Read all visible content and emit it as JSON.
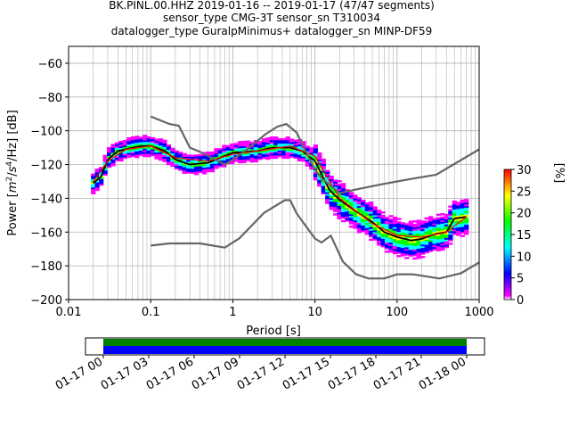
{
  "title_lines": [
    "BK.PINL.00.HHZ   2019-01-16 -- 2019-01-17  (47/47 segments)",
    "sensor_type CMG-3T sensor_sn T310034",
    "datalogger_type GuralpMinimus+ datalogger_sn MINP-DF59"
  ],
  "chart_data": {
    "type": "line",
    "subtype": "probabilistic power spectral density",
    "xlabel": "Period [s]",
    "ylabel": "Power [m²/s⁴/Hz] [dB]",
    "ylabel_parts": {
      "pre": "Power [",
      "m": "m",
      "exp2": "2",
      "slash": "/",
      "s": "s",
      "exp4": "4",
      "tail": "/Hz] [dB]"
    },
    "xscale": "log",
    "xlim": [
      0.01,
      1000
    ],
    "ylim": [
      -200,
      -50
    ],
    "x_ticks": [
      0.01,
      0.1,
      1,
      10,
      100,
      1000
    ],
    "x_tick_labels": [
      "0.01",
      "0.1",
      "1",
      "10",
      "100",
      "1000"
    ],
    "y_ticks": [
      -60,
      -80,
      -100,
      -120,
      -140,
      -160,
      -180,
      -200
    ],
    "y_tick_labels": [
      "−60",
      "−80",
      "−100",
      "−120",
      "−140",
      "−160",
      "−180",
      "−200"
    ],
    "grid": true,
    "series": [
      {
        "role": "mode",
        "color": "#000000",
        "x": [
          0.02,
          0.025,
          0.03,
          0.04,
          0.06,
          0.08,
          0.1,
          0.15,
          0.2,
          0.3,
          0.5,
          0.7,
          1,
          2,
          3,
          5,
          7,
          10,
          15,
          20,
          30,
          50,
          70,
          100,
          150,
          200,
          300,
          400,
          500,
          700
        ],
        "y": [
          -131,
          -127,
          -117,
          -112,
          -110,
          -109,
          -109,
          -112,
          -117,
          -120,
          -119,
          -116,
          -113,
          -112,
          -110,
          -110,
          -112,
          -118,
          -135,
          -141,
          -147,
          -154,
          -160,
          -163,
          -165,
          -164,
          -161,
          -160,
          -152,
          -151
        ]
      },
      {
        "role": "mean",
        "color": "#ff0000",
        "x": [
          0.02,
          0.03,
          0.05,
          0.1,
          0.2,
          0.5,
          1,
          2,
          5,
          10,
          20,
          50,
          100,
          200,
          400,
          700
        ],
        "y": [
          -130,
          -118,
          -111,
          -109,
          -116,
          -118,
          -114,
          -112,
          -109,
          -115,
          -140,
          -155,
          -162,
          -163,
          -160,
          -151
        ]
      },
      {
        "role": "noise-model-high",
        "color": "#666666",
        "x": [
          0.1,
          0.17,
          0.22,
          0.3,
          0.4,
          0.8,
          1.0,
          1.5,
          2.5,
          3.5,
          4.5,
          6,
          7,
          10,
          12,
          20,
          30,
          60,
          100,
          150,
          300,
          1000
        ],
        "y": [
          -91.5,
          -96,
          -97,
          -110,
          -112.5,
          -120,
          -117,
          -111,
          -102,
          -97.5,
          -96,
          -101,
          -108,
          -123,
          -128,
          -137,
          -135,
          -132,
          -130,
          -128.5,
          -126,
          -111
        ]
      },
      {
        "role": "noise-model-low",
        "color": "#666666",
        "x": [
          0.1,
          0.17,
          0.4,
          0.8,
          1.2,
          2.4,
          4.3,
          5,
          6,
          10,
          12,
          15.6,
          21.9,
          31.6,
          45,
          70,
          101,
          154,
          328,
          600,
          1000
        ],
        "y": [
          -168,
          -166.7,
          -166.7,
          -169.2,
          -163.7,
          -148.6,
          -141.1,
          -141.1,
          -149,
          -163.8,
          -166.2,
          -162.1,
          -177.5,
          -185,
          -187.5,
          -187.5,
          -185,
          -185,
          -187.5,
          -184.4,
          -178
        ]
      }
    ],
    "colorbar": {
      "label": "[%]",
      "ticks": [
        0,
        5,
        10,
        15,
        20,
        25,
        30
      ],
      "tick_labels": [
        "0",
        "5",
        "10",
        "15",
        "20",
        "25",
        "30"
      ],
      "range": [
        0,
        30
      ],
      "colormap": [
        "#ffffff",
        "#ff00ff",
        "#0000ff",
        "#00ffff",
        "#00ff00",
        "#ffff00",
        "#ff0000"
      ]
    },
    "coverage": {
      "time_ticks": [
        "01-17 00",
        "01-17 03",
        "01-17 06",
        "01-17 09",
        "01-17 12",
        "01-17 15",
        "01-17 18",
        "01-17 21",
        "01-18 00"
      ],
      "data_start": "01-17 00",
      "data_end": "01-18 00",
      "bar_colors": [
        "#008000",
        "#0000ff"
      ]
    }
  }
}
